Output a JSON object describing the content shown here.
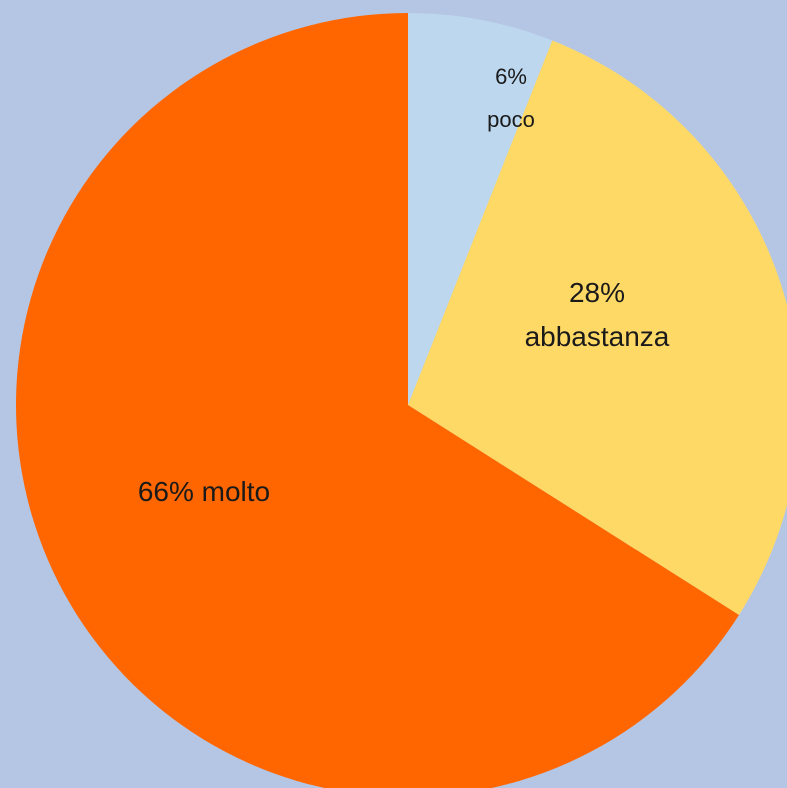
{
  "chart_data": {
    "type": "pie",
    "start_angle_deg": 0,
    "direction": "clockwise",
    "slices": [
      {
        "label": "poco",
        "value": 6,
        "value_label": "6%",
        "color": "#bdd7ee"
      },
      {
        "label": "abbastanza",
        "value": 28,
        "value_label": "28%",
        "color": "#ffd966"
      },
      {
        "label": "molto",
        "value": 66,
        "value_label": "66% molto",
        "color": "#ff6600"
      }
    ]
  },
  "background_color": "#b4c6e4"
}
